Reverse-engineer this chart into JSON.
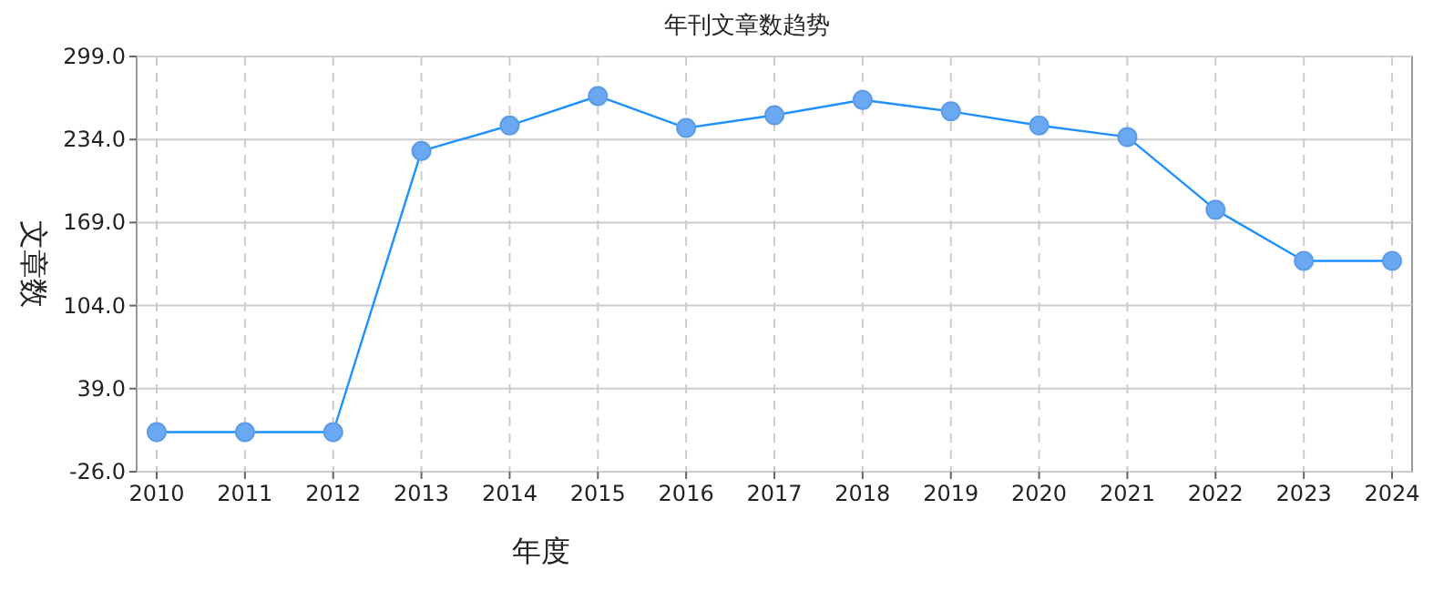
{
  "chart_data": {
    "type": "line",
    "title": "年刊文章数趋势",
    "xlabel": "年度",
    "ylabel": "文章数",
    "categories": [
      "2010",
      "2011",
      "2012",
      "2013",
      "2014",
      "2015",
      "2016",
      "2017",
      "2018",
      "2019",
      "2020",
      "2021",
      "2022",
      "2023",
      "2024"
    ],
    "series": [
      {
        "color": "#1e90ff",
        "values": [
          5,
          5,
          5,
          225,
          245,
          268,
          243,
          253,
          265,
          256,
          245,
          236,
          179,
          139,
          139
        ]
      }
    ],
    "ylim": [
      -26,
      299
    ],
    "yticks": [
      {
        "value": -26,
        "label": "-26.0"
      },
      {
        "value": 39,
        "label": "39.0"
      },
      {
        "value": 104,
        "label": "104.0"
      },
      {
        "value": 169,
        "label": "169.0"
      },
      {
        "value": 234,
        "label": "234.0"
      },
      {
        "value": 299,
        "label": "299.0"
      }
    ],
    "grid": true,
    "marker": "circle",
    "line_style": "solid"
  }
}
